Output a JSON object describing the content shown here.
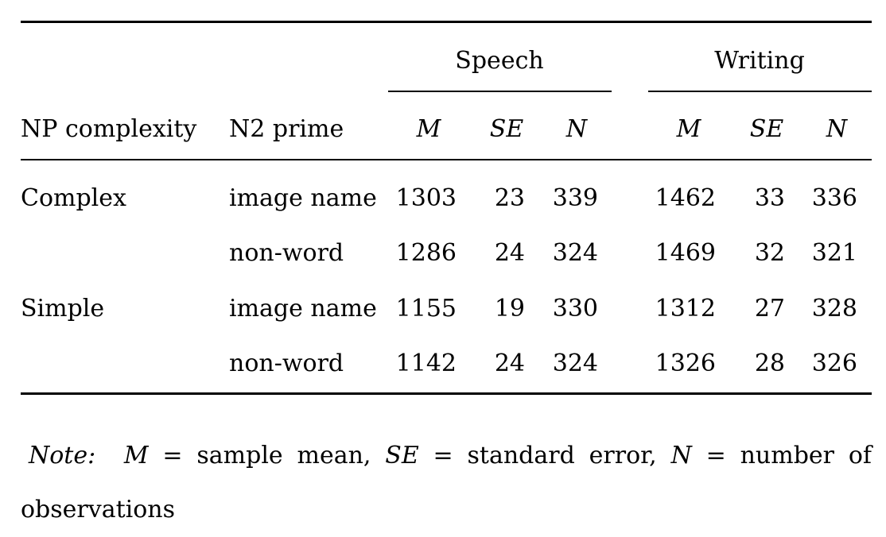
{
  "table": {
    "group_headers": {
      "speech": "Speech",
      "writing": "Writing"
    },
    "col_headers": {
      "np_complexity": "NP complexity",
      "n2_prime": "N2 prime",
      "speech_m": "M",
      "speech_se": "SE",
      "speech_n": "N",
      "writing_m": "M",
      "writing_se": "SE",
      "writing_n": "N"
    },
    "rows": [
      {
        "np": "Complex",
        "prime": "image name",
        "s_m": "1303",
        "s_se": "23",
        "s_n": "339",
        "w_m": "1462",
        "w_se": "33",
        "w_n": "336"
      },
      {
        "np": "",
        "prime": "non-word",
        "s_m": "1286",
        "s_se": "24",
        "s_n": "324",
        "w_m": "1469",
        "w_se": "32",
        "w_n": "321"
      },
      {
        "np": "Simple",
        "prime": "image name",
        "s_m": "1155",
        "s_se": "19",
        "s_n": "330",
        "w_m": "1312",
        "w_se": "27",
        "w_n": "328"
      },
      {
        "np": "",
        "prime": "non-word",
        "s_m": "1142",
        "s_se": "24",
        "s_n": "324",
        "w_m": "1326",
        "w_se": "28",
        "w_n": "326"
      }
    ]
  },
  "note": {
    "label": "Note:",
    "m_sym": "M",
    "m_desc": " = sample mean, ",
    "se_sym": "SE",
    "se_desc": " = standard error, ",
    "n_sym": "N",
    "n_desc": " = number of observations"
  }
}
